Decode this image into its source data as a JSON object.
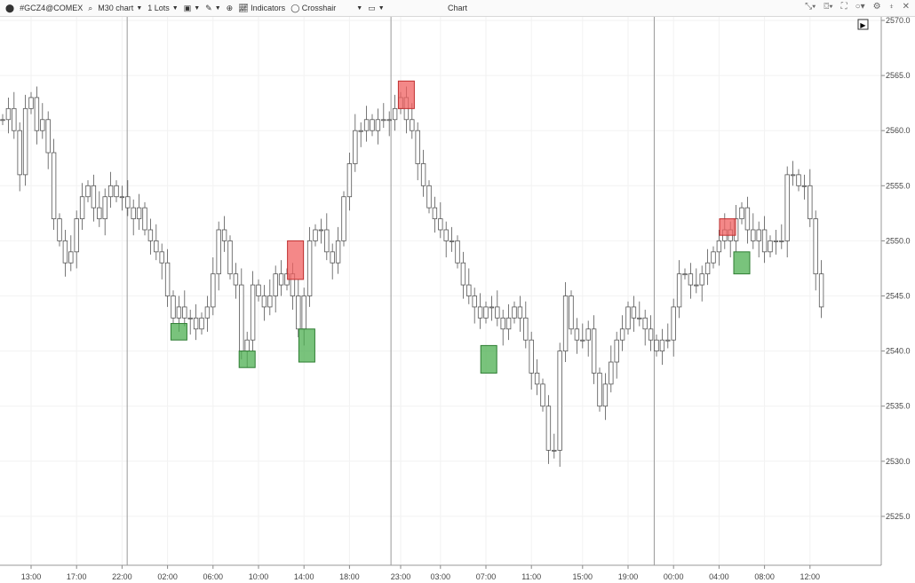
{
  "toolbar": {
    "symbol": "#GCZ4@COMEX",
    "timeframe": "M30 chart",
    "lots": "1 Lots",
    "indicators": "Indicators",
    "crosshair": "Crosshair",
    "title": "Chart"
  },
  "chart_data": {
    "type": "candlestick",
    "ylim": [
      2521,
      2571
    ],
    "y_ticks": [
      "2570.0",
      "2565.0",
      "2560.0",
      "2555.0",
      "2550.0",
      "2545.0",
      "2540.0",
      "2535.0",
      "2530.0",
      "2525.0"
    ],
    "y_tick_values": [
      2570,
      2565,
      2560,
      2555,
      2550,
      2545,
      2540,
      2535,
      2530,
      2525
    ],
    "x_ticks": [
      {
        "label": "13:00",
        "bar": 5
      },
      {
        "label": "17:00",
        "bar": 13
      },
      {
        "label": "22:00",
        "bar": 21
      },
      {
        "label": "02:00",
        "bar": 29
      },
      {
        "label": "06:00",
        "bar": 37
      },
      {
        "label": "10:00",
        "bar": 45
      },
      {
        "label": "14:00",
        "bar": 53
      },
      {
        "label": "18:00",
        "bar": 61
      },
      {
        "label": "23:00",
        "bar": 70
      },
      {
        "label": "03:00",
        "bar": 77
      },
      {
        "label": "07:00",
        "bar": 85
      },
      {
        "label": "11:00",
        "bar": 93
      },
      {
        "label": "15:00",
        "bar": 102
      },
      {
        "label": "19:00",
        "bar": 110
      },
      {
        "label": "00:00",
        "bar": 118
      },
      {
        "label": "04:00",
        "bar": 126
      },
      {
        "label": "08:00",
        "bar": 134
      },
      {
        "label": "12:00",
        "bar": 142
      }
    ],
    "session_breaks_bar": [
      21.9,
      68.3,
      114.6
    ],
    "closes": [
      2561,
      2562,
      2560,
      2556,
      2562,
      2563,
      2560,
      2561,
      2558,
      2552,
      2550,
      2548,
      2549,
      2552,
      2554,
      2555,
      2553,
      2552,
      2554,
      2555,
      2554,
      2554,
      2553,
      2552,
      2553,
      2551,
      2550,
      2549,
      2548,
      2545,
      2543,
      2544,
      2543,
      2543,
      2542,
      2543,
      2544,
      2547,
      2551,
      2550,
      2547,
      2546,
      2540,
      2541,
      2546,
      2545,
      2544,
      2545,
      2547,
      2546,
      2547,
      2545,
      2542,
      2545,
      2550,
      2551,
      2551,
      2549,
      2548,
      2550,
      2554,
      2557,
      2560,
      2560,
      2561,
      2560,
      2561,
      2561,
      2561,
      2562,
      2563,
      2561,
      2560,
      2557,
      2555,
      2553,
      2552,
      2551,
      2550,
      2550,
      2548,
      2546,
      2545,
      2544,
      2543,
      2544,
      2544,
      2543,
      2542,
      2543,
      2544,
      2543,
      2541,
      2538,
      2537,
      2535,
      2531,
      2531,
      2540,
      2545,
      2542,
      2541,
      2541,
      2542,
      2538,
      2535,
      2537,
      2539,
      2541,
      2542,
      2544,
      2543,
      2543,
      2542,
      2541,
      2540,
      2541,
      2541,
      2544,
      2547,
      2547,
      2546,
      2546,
      2547,
      2548,
      2549,
      2550,
      2551,
      2550,
      2552,
      2553,
      2551,
      2550,
      2551,
      2549,
      2550,
      2550,
      2550,
      2556,
      2556,
      2555,
      2555,
      2552,
      2547,
      2544
    ],
    "zones": [
      {
        "type": "supply",
        "bar": 71,
        "top": 2564.5,
        "bottom": 2562
      },
      {
        "type": "supply",
        "bar": 51.5,
        "top": 2550,
        "bottom": 2546.5
      },
      {
        "type": "supply",
        "bar": 127.5,
        "top": 2552,
        "bottom": 2550.5
      },
      {
        "type": "demand",
        "bar": 31,
        "top": 2542.5,
        "bottom": 2541
      },
      {
        "type": "demand",
        "bar": 43,
        "top": 2540,
        "bottom": 2538.5
      },
      {
        "type": "demand",
        "bar": 53.5,
        "top": 2542,
        "bottom": 2539
      },
      {
        "type": "demand",
        "bar": 85.5,
        "top": 2540.5,
        "bottom": 2538
      },
      {
        "type": "demand",
        "bar": 130,
        "top": 2549,
        "bottom": 2547
      }
    ],
    "colors": {
      "supply": "#f06060",
      "demand": "#4caf50",
      "candle": "#555555"
    }
  }
}
